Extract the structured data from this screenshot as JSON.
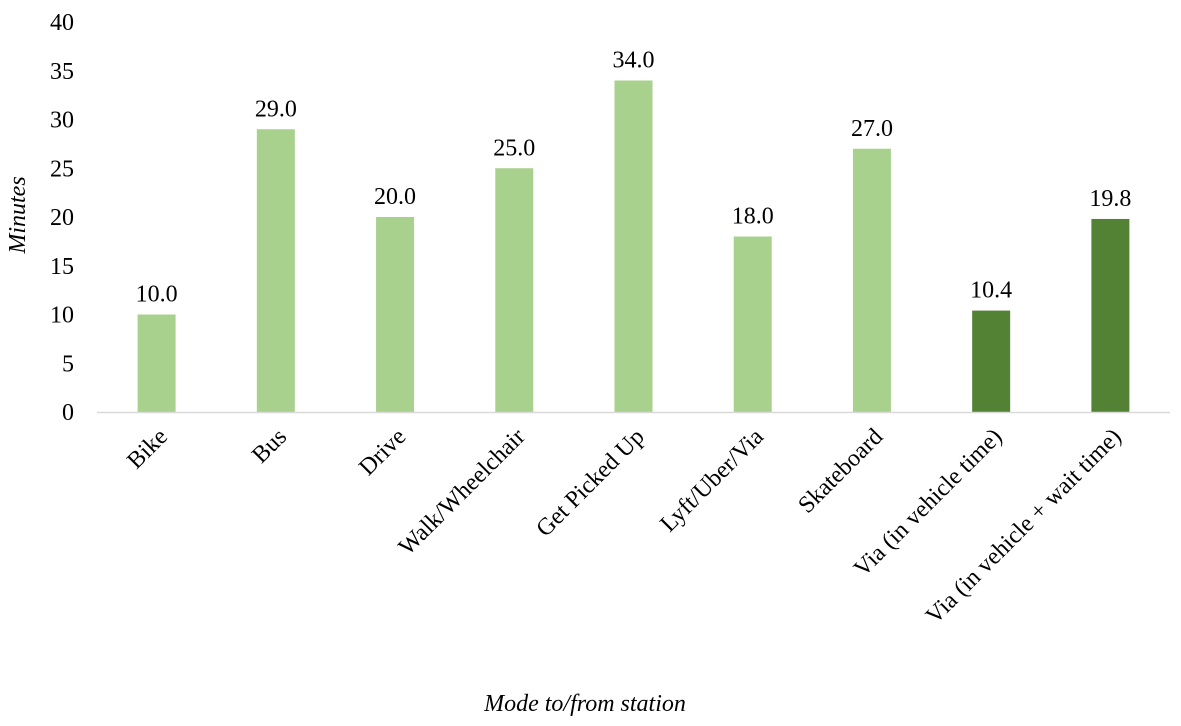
{
  "chart_data": {
    "type": "bar",
    "title": "",
    "xlabel": "Mode to/from station",
    "ylabel": "Minutes",
    "ylim": [
      0,
      40
    ],
    "ytick_step": 5,
    "grid": false,
    "legend": "none",
    "categories": [
      "Bike",
      "Bus",
      "Drive",
      "Walk/Wheelchair",
      "Get Picked Up",
      "Lyft/Uber/Via",
      "Skateboard",
      "Via (in vehicle time)",
      "Via (in vehicle + wait time)"
    ],
    "values": [
      10.0,
      29.0,
      20.0,
      25.0,
      34.0,
      18.0,
      27.0,
      10.4,
      19.8
    ],
    "value_labels": [
      "10.0",
      "29.0",
      "20.0",
      "25.0",
      "34.0",
      "18.0",
      "27.0",
      "10.4",
      "19.8"
    ],
    "colors": [
      "#a9d18e",
      "#a9d18e",
      "#a9d18e",
      "#a9d18e",
      "#a9d18e",
      "#a9d18e",
      "#a9d18e",
      "#548235",
      "#548235"
    ],
    "axis_color": "#d9d9d9"
  }
}
